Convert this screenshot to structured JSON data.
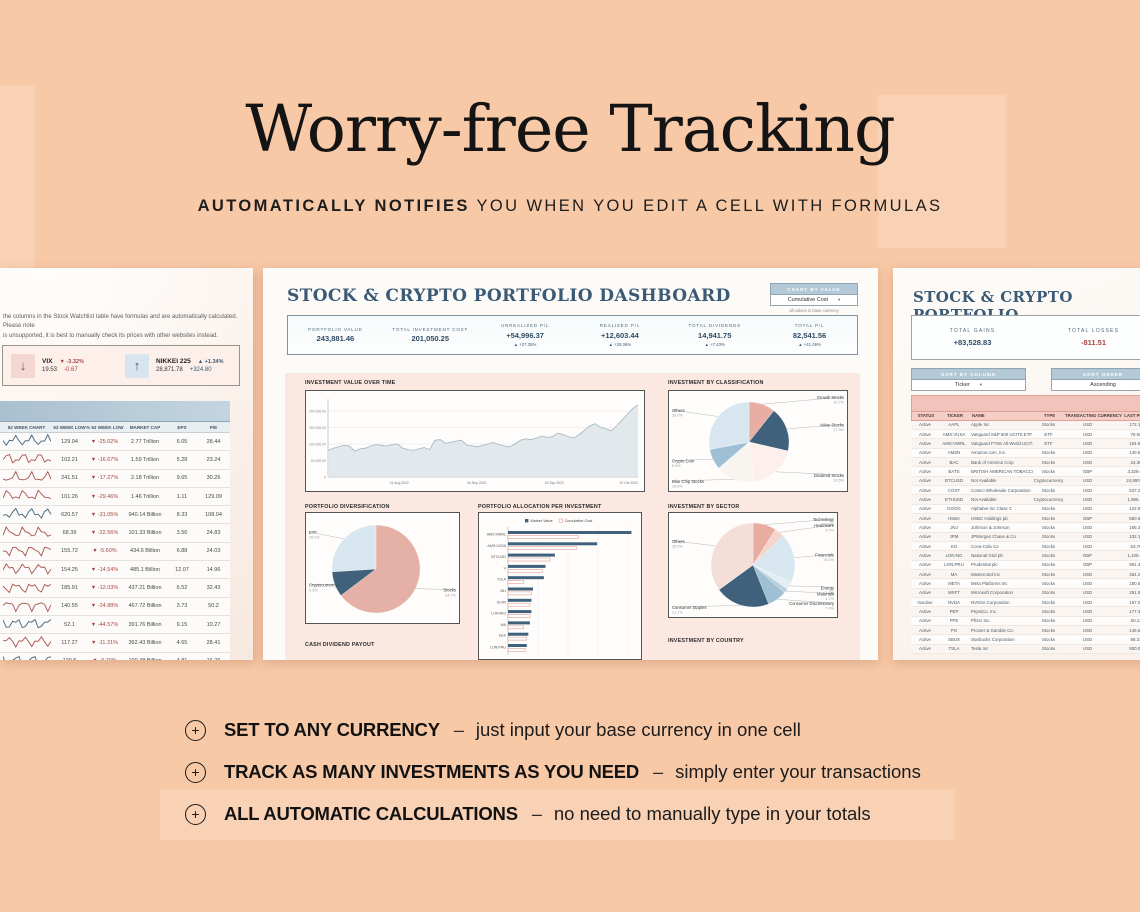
{
  "page": {
    "bg_color": "#f8c9a7",
    "accent_navy": "#3c5a74",
    "accent_pink": "#e8aca1",
    "title": "Worry-free Tracking",
    "subtitle_bold": "AUTOMATICALLY NOTIFIES",
    "subtitle_rest": "YOU WHEN YOU EDIT A CELL WITH FORMULAS"
  },
  "features": [
    {
      "icon": "plus-circle",
      "label": "SET TO ANY CURRENCY",
      "dash": "–",
      "desc": "just input your base currency in one cell"
    },
    {
      "icon": "plus-circle",
      "label": "TRACK AS MANY INVESTMENTS AS YOU NEED",
      "dash": "–",
      "desc": "simply enter your transactions"
    },
    {
      "icon": "plus-circle",
      "label": "ALL AUTOMATIC CALCULATIONS",
      "dash": "–",
      "desc": "no need to manually type in your totals"
    }
  ],
  "watchlist": {
    "note_line1": "the columns in the Stock Watchlist table have formulas and are automatically calculated. Please note",
    "note_line2": "is unsupported, it is best to manually check its prices with other websites instead.",
    "tickers": [
      {
        "name": "VIX",
        "pct": "▼ -3.32%",
        "value": "19.53",
        "change": "-0.67",
        "dir": "down"
      },
      {
        "name": "NIKKEI 225",
        "pct": "▲ +1.34%",
        "value": "28,871.78",
        "change": "+324.80",
        "dir": "up"
      }
    ],
    "headers": [
      "52 WEEK CHART",
      "52 WEEK LOW",
      "% 52 WEEK LOW",
      "MARKET CAP",
      "EPS",
      "P/E"
    ],
    "rows": [
      {
        "low": "129.04",
        "pct": "▼ -25.02%",
        "cap": "2.77 Trillion",
        "eps": "6.05",
        "pe": "28.44",
        "spark": "blue"
      },
      {
        "low": "102.21",
        "pct": "▼ -16.67%",
        "cap": "1.59 Trillion",
        "eps": "5.28",
        "pe": "23.24",
        "spark": "red"
      },
      {
        "low": "241.51",
        "pct": "▼ -17.27%",
        "cap": "2.18 Trillion",
        "eps": "9.65",
        "pe": "30.26",
        "spark": "red"
      },
      {
        "low": "101.26",
        "pct": "▼ -29.46%",
        "cap": "1.46 Trillion",
        "eps": "1.11",
        "pe": "129.09",
        "spark": "red"
      },
      {
        "low": "620.57",
        "pct": "▼ -31.05%",
        "cap": "940.14 Billion",
        "eps": "8.33",
        "pe": "108.04",
        "spark": "blue"
      },
      {
        "low": "68.39",
        "pct": "▼ -22.56%",
        "cap": "101.33 Billion",
        "eps": "3.56",
        "pe": "24.83",
        "spark": "red"
      },
      {
        "low": "155.72",
        "pct": "▼ -5.60%",
        "cap": "434.6 Billion",
        "eps": "6.88",
        "pe": "24.03",
        "spark": "red"
      },
      {
        "low": "154.25",
        "pct": "▼ -14.54%",
        "cap": "485.1 Billion",
        "eps": "12.07",
        "pe": "14.96",
        "spark": "red"
      },
      {
        "low": "185.91",
        "pct": "▼ -12.03%",
        "cap": "437.21 Billion",
        "eps": "6.52",
        "pe": "32.43",
        "spark": "red"
      },
      {
        "low": "140.55",
        "pct": "▼ -24.88%",
        "cap": "467.72 Billion",
        "eps": "3.73",
        "pe": "50.2",
        "spark": "red"
      },
      {
        "low": "52.1",
        "pct": "▼ -44.57%",
        "cap": "391.76 Billion",
        "eps": "9.15",
        "pe": "10.27",
        "spark": "blue"
      },
      {
        "low": "117.27",
        "pct": "▼ -11.31%",
        "cap": "362.43 Billion",
        "eps": "4.65",
        "pe": "28.41",
        "spark": "red"
      },
      {
        "low": "129.5",
        "pct": "▼ -9.70%",
        "cap": "100.48 Billion",
        "eps": "4.81",
        "pe": "16.26",
        "spark": "blue"
      }
    ]
  },
  "dashboard": {
    "title": "STOCK & CRYPTO PORTFOLIO DASHBOARD",
    "chart_by_label": "CHART BY VALUE",
    "chart_by_value": "Cumulative Cost",
    "chart_by_note": "all values in base currency",
    "cash_dividend_title": "CASH DIVIDEND PAYOUT",
    "by_country_title": "INVESTMENT BY COUNTRY",
    "stats": [
      {
        "label": "PORTFOLIO VALUE",
        "value": "243,881.46",
        "pct": ""
      },
      {
        "label": "TOTAL INVESTMENT COST",
        "value": "201,050.25",
        "pct": ""
      },
      {
        "label": "UNREALIZED P/L",
        "value": "+54,996.37",
        "pct": "▲ +27.35%"
      },
      {
        "label": "REALIZED P/L",
        "value": "+12,603.44",
        "pct": "▲ +29.36%"
      },
      {
        "label": "TOTAL DIVIDENDS",
        "value": "14,941.75",
        "pct": "▲ +7.43%"
      },
      {
        "label": "TOTAL P/L",
        "value": "82,541.56",
        "pct": "▲ +41.06%"
      }
    ]
  },
  "portfolio": {
    "title": "STOCK & CRYPTO PORTFOLIO",
    "total_gains_label": "TOTAL GAINS",
    "total_gains": "+83,528.83",
    "total_losses_label": "TOTAL LOSSES",
    "total_losses": "-811.51",
    "sort_column_label": "SORT BY COLUMN",
    "sort_column_value": "Ticker",
    "sort_order_label": "SORT ORDER",
    "sort_order_value": "Ascending",
    "headers": [
      "STATUS",
      "TICKER",
      "NAME",
      "TYPE",
      "TRANSACTING CURRENCY",
      "LAST PRICE"
    ],
    "rows": [
      [
        "Active",
        "AAPL",
        "Apple Inc",
        "Stocks",
        "USD",
        "172.10"
      ],
      [
        "Active",
        "AMS:VUSA",
        "Vanguard S&P 500 UCITS ETF USD D",
        "ETF",
        "USD",
        "78.56"
      ],
      [
        "Active",
        "AMS:VWRL",
        "Vanguard FTSE All-World UCITS ETF",
        "ETF",
        "USD",
        "104.86"
      ],
      [
        "Active",
        "AMZN",
        "Amazon.com, Inc.",
        "Stocks",
        "USD",
        "140.55"
      ],
      [
        "Active",
        "BAC",
        "Bank of America Corp",
        "Stocks",
        "USD",
        "34.30"
      ],
      [
        "Active",
        "BATS",
        "BRITISH AMERICAN TOBACCO PLC A",
        "Stocks",
        "GBP",
        "3,329.00"
      ],
      [
        "Active",
        "BTCUSD",
        "Not Available",
        "Cryptocurrency",
        "USD",
        "24,890.70"
      ],
      [
        "Active",
        "COST",
        "Costco Wholesale Corporation",
        "Stocks",
        "USD",
        "537.21"
      ],
      [
        "Active",
        "ETHUSD",
        "Not Available",
        "Cryptocurrency",
        "USD",
        "1,986.30"
      ],
      [
        "Active",
        "GOOG",
        "Alphabet Inc Class C",
        "Stocks",
        "USD",
        "122.83"
      ],
      [
        "Active",
        "HSBA",
        "HSBC Holdings plc",
        "Stocks",
        "GBP",
        "550.90"
      ],
      [
        "Active",
        "JNJ",
        "Johnson & Johnson",
        "Stocks",
        "USD",
        "165.30"
      ],
      [
        "Active",
        "JPM",
        "JPMorgan Chase & Co",
        "Stocks",
        "USD",
        "102.13"
      ],
      [
        "Active",
        "KO",
        "Coca-Cola Co",
        "Stocks",
        "USD",
        "63.70"
      ],
      [
        "Active",
        "LON:NG",
        "National Grid plc",
        "Stocks",
        "GBP",
        "1,109.50"
      ],
      [
        "Active",
        "LON:PRU",
        "Prudential plc",
        "Stocks",
        "GBP",
        "991.30"
      ],
      [
        "Active",
        "MA",
        "Mastercard Inc",
        "Stocks",
        "USD",
        "354.27"
      ],
      [
        "Active",
        "META",
        "Meta Platforms Inc",
        "Stocks",
        "USD",
        "180.50"
      ],
      [
        "Active",
        "MSFT",
        "Microsoft Corporation",
        "Stocks",
        "USD",
        "291.91"
      ],
      [
        "Inactive",
        "NVDA",
        "NVIDIA Corporation",
        "Stocks",
        "USD",
        "167.09"
      ],
      [
        "Active",
        "PEP",
        "PepsiCo, Inc.",
        "Stocks",
        "USD",
        "177.33"
      ],
      [
        "Active",
        "PFE",
        "Pfizer Inc.",
        "Stocks",
        "USD",
        "50.11"
      ],
      [
        "Active",
        "PG",
        "Procter & Gamble Co.",
        "Stocks",
        "USD",
        "146.67"
      ],
      [
        "Active",
        "SBUX",
        "Starbucks Corporation",
        "Stocks",
        "USD",
        "88.31"
      ],
      [
        "Active",
        "TSLA",
        "Tesla Inc",
        "Stocks",
        "USD",
        "900.09"
      ]
    ]
  },
  "chart_data": [
    {
      "id": "investment_value_over_time",
      "type": "area",
      "title": "INVESTMENT VALUE OVER TIME",
      "x_ticks": [
        "21 Aug 2022",
        "04 Sep 2022",
        "18 Sep 2022",
        "02 Oct 2022"
      ],
      "y_ticks": [
        "200,000.00",
        "150,000.00",
        "100,000.00",
        "50,000.00"
      ],
      "y_zero": "0",
      "ylim": [
        0,
        250000
      ],
      "values": [
        37,
        40,
        42,
        44,
        43,
        36,
        39,
        40,
        43,
        45,
        44,
        43,
        45,
        46,
        40,
        38,
        37,
        39,
        41,
        38,
        51,
        52,
        47,
        48,
        50,
        51,
        44,
        43,
        42,
        44,
        46,
        48,
        45,
        43,
        42,
        46,
        51,
        53,
        52,
        54,
        57,
        55,
        56,
        61,
        59,
        56,
        54,
        59,
        65,
        71,
        74,
        69,
        67,
        64,
        71,
        79,
        87,
        95,
        100
      ]
    },
    {
      "id": "investment_by_classification",
      "type": "pie",
      "title": "INVESTMENT BY CLASSIFICATION",
      "slices": [
        {
          "label": "Growth Stocks",
          "pct": 10.7,
          "color": "#e9aea3"
        },
        {
          "label": "Value Stocks",
          "pct": 17.9,
          "color": "#3f617b"
        },
        {
          "label": "Dividend Stocks",
          "pct": 19.5,
          "color": "#fdf0ec"
        },
        {
          "label": "Blue Chip Stocks",
          "pct": 15.6,
          "color": "#f8f5f1"
        },
        {
          "label": "Crypto Coin",
          "pct": 8.3,
          "color": "#9fbfd4"
        },
        {
          "label": "Others",
          "pct": 28.0,
          "color": "#d8e6ef"
        }
      ]
    },
    {
      "id": "portfolio_diversification",
      "type": "pie",
      "title": "PORTFOLIO DIVERSIFICATION",
      "slices": [
        {
          "label": "Stocks",
          "pct": 64.7,
          "color": "#e5b1a7"
        },
        {
          "label": "Cryptocurrency",
          "pct": 9.3,
          "color": "#3f617b"
        },
        {
          "label": "ETF",
          "pct": 26.0,
          "color": "#d8e6ef"
        }
      ]
    },
    {
      "id": "portfolio_allocation_per_investment",
      "type": "bar",
      "title": "PORTFOLIO ALLOCATION PER INVESTMENT",
      "categories": [
        "AMS:VWRL",
        "AMS:VUSA",
        "BTCUSD",
        "V",
        "TSLA",
        "JNJ",
        "ULVR",
        "LON:RIO",
        "MA",
        "PEP",
        "LON:PRU"
      ],
      "series": [
        {
          "name": "Market Value",
          "color": "#3f617b",
          "values": [
            79,
            57,
            30,
            24,
            23,
            16,
            15,
            15,
            14,
            13,
            12
          ]
        },
        {
          "name": "Cumulative Cost",
          "color": "#e0a194",
          "values": [
            45,
            44,
            27,
            22,
            10,
            15,
            14,
            14,
            10,
            12,
            11
          ]
        }
      ],
      "xlim": [
        0,
        80
      ]
    },
    {
      "id": "investment_by_sector",
      "type": "pie",
      "title": "INVESTMENT BY SECTOR",
      "slices": [
        {
          "label": "Technology",
          "pct": 9.0,
          "color": "#e8aca1"
        },
        {
          "label": "Healthcare",
          "pct": 3.7,
          "color": "#f4d5cd"
        },
        {
          "label": "Financials",
          "pct": 19.0,
          "color": "#d8e6ef"
        },
        {
          "label": "Energy",
          "pct": 3.1,
          "color": "#e3edf3"
        },
        {
          "label": "Materials",
          "pct": 1.7,
          "color": "#b7cfdd"
        },
        {
          "label": "Consumer Discretionary",
          "pct": 7.4,
          "color": "#9fbfd4"
        },
        {
          "label": "Consumer Staples",
          "pct": 21.1,
          "color": "#3f617b"
        },
        {
          "label": "Others",
          "pct": 35.0,
          "color": "#f5ded8"
        }
      ]
    }
  ]
}
